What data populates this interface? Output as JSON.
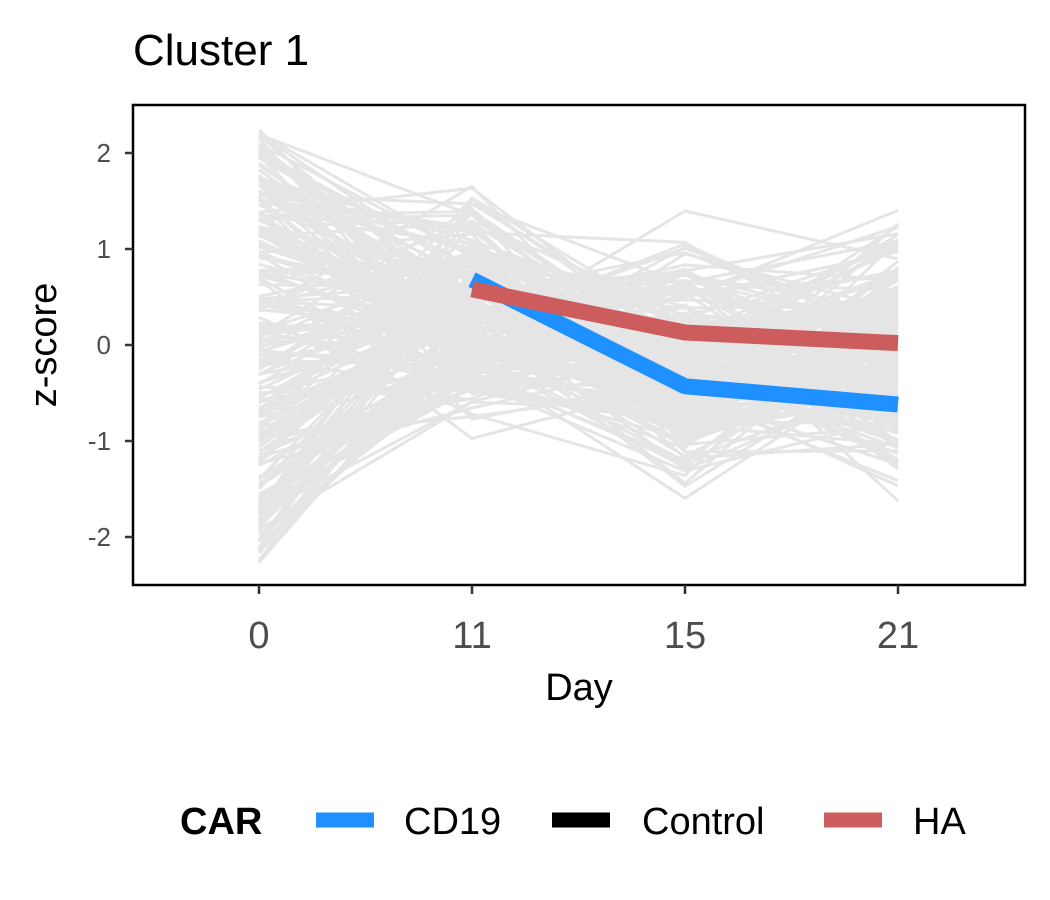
{
  "chart_data": {
    "type": "line",
    "title": "Cluster 1",
    "xlabel": "Day",
    "ylabel": "z-score",
    "x": [
      "0",
      "11",
      "15",
      "21"
    ],
    "x_numeric": [
      0,
      11,
      15,
      21
    ],
    "xlim": [
      -3,
      28
    ],
    "ylim": [
      -2.5,
      2.5
    ],
    "y_ticks": [
      "-2",
      "-1",
      "0",
      "1",
      "2"
    ],
    "y_tick_values": [
      -2,
      -1,
      0,
      1,
      2
    ],
    "grid": false,
    "legend": {
      "title": "CAR",
      "position": "bottom",
      "entries": [
        {
          "label": "CD19",
          "color": "#1E90FF"
        },
        {
          "label": "Control",
          "color": "#000000"
        },
        {
          "label": "HA",
          "color": "#CD5C5C"
        }
      ]
    },
    "series": [
      {
        "name": "CD19",
        "color": "#1E90FF",
        "x": [
          11,
          15,
          21
        ],
        "values": [
          0.68,
          -0.43,
          -0.62
        ]
      },
      {
        "name": "HA",
        "color": "#CD5C5C",
        "x": [
          11,
          15,
          21
        ],
        "values": [
          0.58,
          0.13,
          0.02
        ]
      }
    ],
    "background_trajectories": {
      "color": "#E5E5E5",
      "description_range": {
        "day0": [
          -2.3,
          2.25
        ],
        "day11": [
          -1.2,
          2.05
        ],
        "day15": [
          -2.0,
          1.7
        ],
        "day21": [
          -1.95,
          1.85
        ]
      }
    }
  }
}
